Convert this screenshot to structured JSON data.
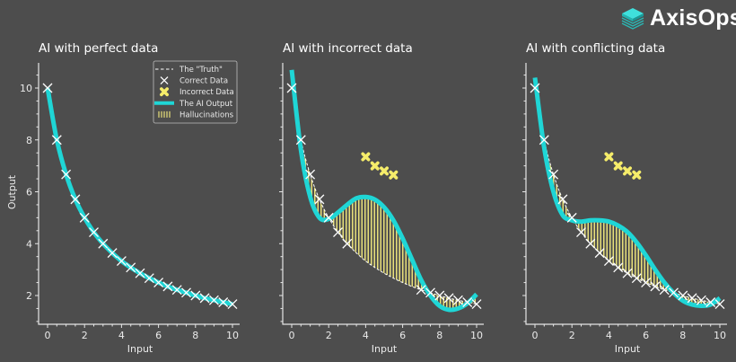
{
  "brand": {
    "name": "AxisOps",
    "icon": "stacked-layers-icon",
    "accent": "#2dd4d4"
  },
  "colors": {
    "background": "#4d4d4d",
    "ai_output": "#1fd6d6",
    "correct_data": "#ffffff",
    "incorrect_data": "#f5ec6a",
    "hallucination_hatch": "#e8e07a",
    "axis": "#e6e6e6"
  },
  "legend": {
    "items": [
      {
        "label": "The \"Truth\"",
        "marker": "dashed-line"
      },
      {
        "label": "Correct Data",
        "marker": "x"
      },
      {
        "label": "Incorrect Data",
        "marker": "filled-x"
      },
      {
        "label": "The AI Output",
        "marker": "thick-line"
      },
      {
        "label": "Hallucinations",
        "marker": "hatch"
      }
    ]
  },
  "chart_data": [
    {
      "type": "line",
      "title": "AI with perfect data",
      "xlabel": "Input",
      "ylabel": "Output",
      "xlim": [
        -0.5,
        10.4
      ],
      "ylim": [
        1.0,
        11.0
      ],
      "xticks": [
        0,
        2,
        4,
        6,
        8,
        10
      ],
      "yticks": [
        2,
        4,
        6,
        8,
        10
      ],
      "grid": false,
      "legend_position": "upper right",
      "series": [
        {
          "name": "The \"Truth\"",
          "x": [
            0,
            0.5,
            1,
            1.5,
            2,
            2.5,
            3,
            3.5,
            4,
            4.5,
            5,
            5.5,
            6,
            6.5,
            7,
            7.5,
            8,
            8.5,
            9,
            9.5,
            10
          ],
          "values": [
            10,
            8,
            6.67,
            5.71,
            5,
            4.44,
            4,
            3.64,
            3.33,
            3.08,
            2.86,
            2.67,
            2.5,
            2.35,
            2.22,
            2.11,
            2,
            1.9,
            1.82,
            1.74,
            1.67
          ]
        },
        {
          "name": "Correct Data",
          "x": [
            0,
            0.5,
            1,
            1.5,
            2,
            2.5,
            3,
            3.5,
            4,
            4.5,
            5,
            5.5,
            6,
            6.5,
            7,
            7.5,
            8,
            8.5,
            9,
            9.5,
            10
          ],
          "values": [
            10,
            8,
            6.67,
            5.71,
            5,
            4.44,
            4,
            3.64,
            3.33,
            3.08,
            2.86,
            2.67,
            2.5,
            2.35,
            2.22,
            2.11,
            2,
            1.9,
            1.82,
            1.74,
            1.67
          ]
        },
        {
          "name": "The AI Output",
          "x": [
            0,
            0.5,
            1,
            1.5,
            2,
            2.5,
            3,
            3.5,
            4,
            4.5,
            5,
            5.5,
            6,
            6.5,
            7,
            7.5,
            8,
            8.5,
            9,
            9.5,
            10
          ],
          "values": [
            10,
            8,
            6.67,
            5.71,
            5,
            4.44,
            4,
            3.64,
            3.33,
            3.08,
            2.86,
            2.67,
            2.5,
            2.35,
            2.22,
            2.11,
            2,
            1.9,
            1.82,
            1.74,
            1.67
          ]
        }
      ]
    },
    {
      "type": "line",
      "title": "AI with incorrect data",
      "xlabel": "Input",
      "ylabel": "",
      "xlim": [
        -0.5,
        10.4
      ],
      "ylim": [
        1.0,
        11.0
      ],
      "xticks": [
        0,
        2,
        4,
        6,
        8,
        10
      ],
      "yticks": [
        2,
        4,
        6,
        8,
        10
      ],
      "grid": false,
      "series": [
        {
          "name": "The \"Truth\"",
          "x": [
            0,
            0.5,
            1,
            1.5,
            2,
            2.5,
            3,
            3.5,
            4,
            4.5,
            5,
            5.5,
            6,
            6.5,
            7,
            7.5,
            8,
            8.5,
            9,
            9.5,
            10
          ],
          "values": [
            10,
            8,
            6.67,
            5.71,
            5,
            4.44,
            4,
            3.64,
            3.33,
            3.08,
            2.86,
            2.67,
            2.5,
            2.35,
            2.22,
            2.11,
            2,
            1.9,
            1.82,
            1.74,
            1.67
          ]
        },
        {
          "name": "Correct Data",
          "x": [
            0,
            0.5,
            1,
            1.5,
            2,
            2.5,
            3,
            7,
            7.5,
            8,
            8.5,
            9,
            9.5,
            10
          ],
          "values": [
            10,
            8,
            6.67,
            5.71,
            5,
            4.44,
            4,
            2.22,
            2.11,
            2,
            1.9,
            1.82,
            1.74,
            1.67
          ]
        },
        {
          "name": "Incorrect Data",
          "x": [
            4,
            4.5,
            5,
            5.5
          ],
          "values": [
            7.35,
            7.0,
            6.8,
            6.65
          ]
        },
        {
          "name": "The AI Output",
          "x": [
            0,
            0.5,
            1,
            1.5,
            2,
            2.5,
            3,
            3.5,
            4,
            4.5,
            5,
            5.5,
            6,
            6.5,
            7,
            7.5,
            8,
            8.5,
            9,
            9.5,
            10
          ],
          "values": [
            10.7,
            7.6,
            5.8,
            5.0,
            4.95,
            5.2,
            5.5,
            5.75,
            5.8,
            5.7,
            5.4,
            4.9,
            4.2,
            3.4,
            2.6,
            2.0,
            1.6,
            1.45,
            1.5,
            1.7,
            2.05
          ]
        },
        {
          "name": "Hallucinations",
          "region": "area between AI Output and Truth"
        }
      ]
    },
    {
      "type": "line",
      "title": "AI with conflicting data",
      "xlabel": "Input",
      "ylabel": "",
      "xlim": [
        -0.5,
        10.4
      ],
      "ylim": [
        1.0,
        11.0
      ],
      "xticks": [
        0,
        2,
        4,
        6,
        8,
        10
      ],
      "yticks": [
        2,
        4,
        6,
        8,
        10
      ],
      "grid": false,
      "series": [
        {
          "name": "The \"Truth\"",
          "x": [
            0,
            0.5,
            1,
            1.5,
            2,
            2.5,
            3,
            3.5,
            4,
            4.5,
            5,
            5.5,
            6,
            6.5,
            7,
            7.5,
            8,
            8.5,
            9,
            9.5,
            10
          ],
          "values": [
            10,
            8,
            6.67,
            5.71,
            5,
            4.44,
            4,
            3.64,
            3.33,
            3.08,
            2.86,
            2.67,
            2.5,
            2.35,
            2.22,
            2.11,
            2,
            1.9,
            1.82,
            1.74,
            1.67
          ]
        },
        {
          "name": "Correct Data",
          "x": [
            0,
            0.5,
            1,
            1.5,
            2,
            2.5,
            3,
            3.5,
            4,
            4.5,
            5,
            5.5,
            6,
            6.5,
            7,
            7.5,
            8,
            8.5,
            9,
            9.5,
            10
          ],
          "values": [
            10,
            8,
            6.67,
            5.71,
            5,
            4.44,
            4,
            3.64,
            3.33,
            3.08,
            2.86,
            2.67,
            2.5,
            2.35,
            2.22,
            2.11,
            2,
            1.9,
            1.82,
            1.74,
            1.67
          ]
        },
        {
          "name": "Incorrect Data",
          "x": [
            4,
            4.5,
            5,
            5.5
          ],
          "values": [
            7.35,
            7.0,
            6.8,
            6.65
          ]
        },
        {
          "name": "The AI Output",
          "x": [
            0,
            0.5,
            1,
            1.5,
            2,
            2.5,
            3,
            3.5,
            4,
            4.5,
            5,
            5.5,
            6,
            6.5,
            7,
            7.5,
            8,
            8.5,
            9,
            9.5,
            10
          ],
          "values": [
            10.4,
            7.7,
            6.0,
            5.1,
            4.9,
            4.85,
            4.9,
            4.9,
            4.85,
            4.7,
            4.45,
            4.05,
            3.55,
            3.0,
            2.5,
            2.1,
            1.8,
            1.65,
            1.6,
            1.65,
            1.9
          ]
        },
        {
          "name": "Hallucinations",
          "region": "area between AI Output and Truth"
        }
      ]
    }
  ]
}
